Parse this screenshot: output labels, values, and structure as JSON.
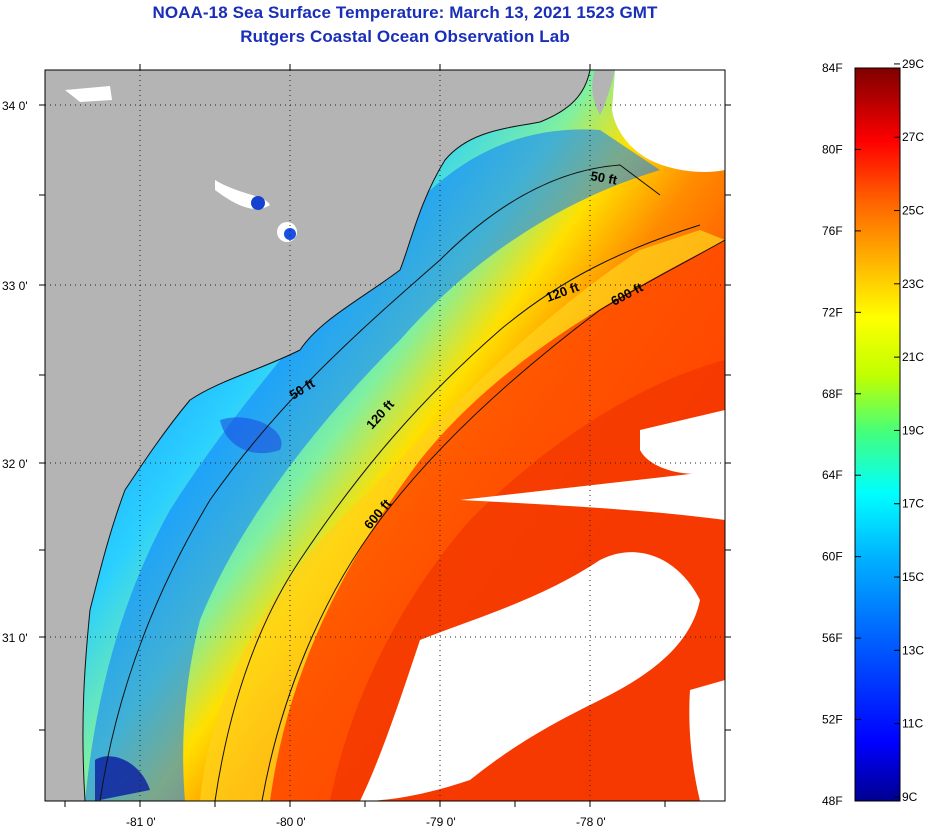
{
  "title": "NOAA-18 Sea Surface Temperature:  March 13, 2021 1523 GMT",
  "subtitle": "Rutgers Coastal Ocean Observation Lab",
  "map": {
    "lat_labels": [
      "34 0'",
      "33 0'",
      "32 0'",
      "31 0'"
    ],
    "lon_labels": [
      "-81 0'",
      "-80 0'",
      "-79 0'",
      "-78 0'"
    ],
    "contour_labels": [
      "50 ft",
      "120 ft",
      "600 ft",
      "50 ft",
      "120 ft",
      "600 ft"
    ],
    "colors": {
      "land": "#b4b4b4",
      "cloud": "#ffffff",
      "graticule": "#222222"
    }
  },
  "colorbar": {
    "fahrenheit_labels": [
      "84F",
      "80F",
      "76F",
      "72F",
      "68F",
      "64F",
      "60F",
      "56F",
      "52F",
      "48F"
    ],
    "celsius_labels": [
      "29C",
      "27C",
      "25C",
      "23C",
      "21C",
      "19C",
      "17C",
      "15C",
      "13C",
      "11C",
      "9C"
    ],
    "colormap": [
      "#00008f",
      "#0000ff",
      "#0060ff",
      "#00b0ff",
      "#00ffff",
      "#40ff80",
      "#c0ff00",
      "#ffff00",
      "#ffb000",
      "#ff6000",
      "#ff0000",
      "#b00000",
      "#800000"
    ]
  }
}
